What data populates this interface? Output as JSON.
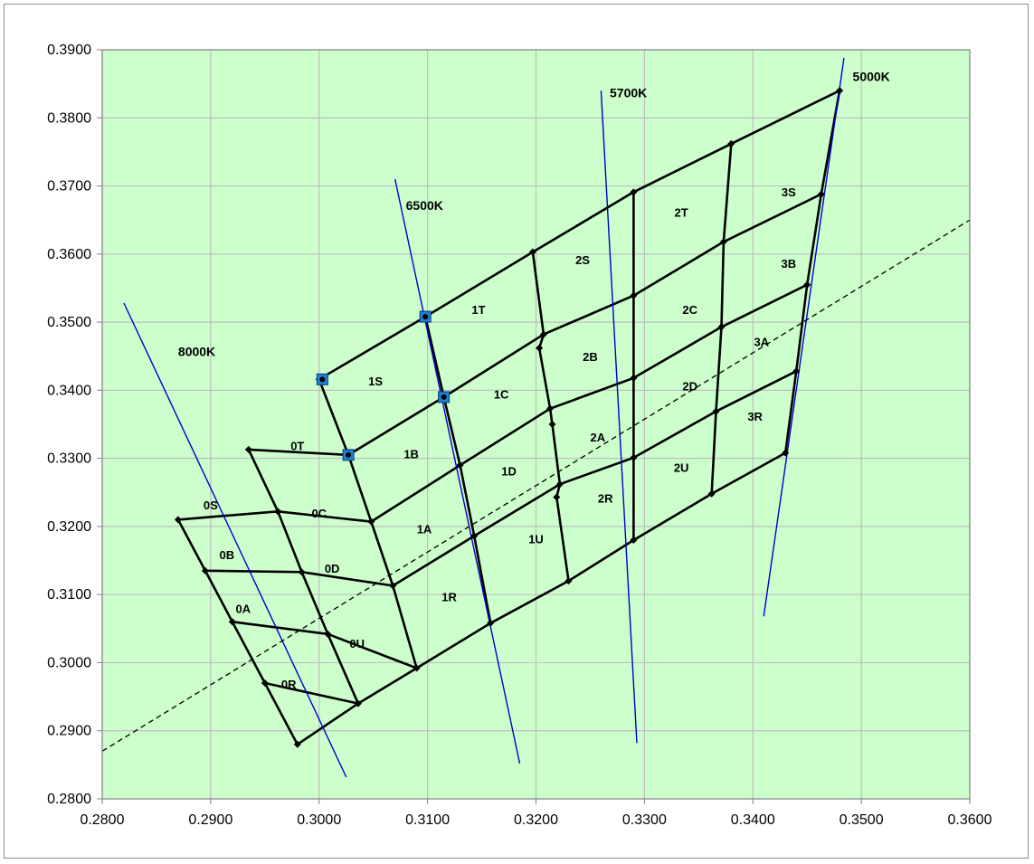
{
  "chart_data": {
    "type": "scatter",
    "title": "",
    "xlabel": "",
    "ylabel": "",
    "xlim": [
      0.28,
      0.36
    ],
    "ylim": [
      0.28,
      0.39
    ],
    "x_ticks": [
      "0.2800",
      "0.2900",
      "0.3000",
      "0.3100",
      "0.3200",
      "0.3300",
      "0.3400",
      "0.3500",
      "0.3600"
    ],
    "y_ticks": [
      "0.2800",
      "0.2900",
      "0.3000",
      "0.3100",
      "0.3200",
      "0.3300",
      "0.3400",
      "0.3500",
      "0.3600",
      "0.3700",
      "0.3800",
      "0.3900"
    ],
    "grid": true,
    "plot_background": "#ccffcc",
    "grid_color": "#bfbfbf",
    "bin_line_color": "#000000",
    "cct_line_color": "#0000cc",
    "bin_boundaries": [
      [
        [
          0.3,
          0.3416
        ],
        [
          0.3098,
          0.3508
        ],
        [
          0.3197,
          0.3603
        ],
        [
          0.329,
          0.3691
        ],
        [
          0.338,
          0.3762
        ],
        [
          0.348,
          0.384
        ]
      ],
      [
        [
          0.2935,
          0.3313
        ],
        [
          0.3027,
          0.3305
        ],
        [
          0.3115,
          0.339
        ],
        [
          0.3207,
          0.3482
        ],
        [
          0.329,
          0.3539
        ],
        [
          0.3373,
          0.3618
        ],
        [
          0.3463,
          0.3688
        ]
      ],
      [
        [
          0.287,
          0.321
        ],
        [
          0.2962,
          0.3222
        ],
        [
          0.3048,
          0.3207
        ],
        [
          0.313,
          0.329
        ],
        [
          0.3213,
          0.3373
        ],
        [
          0.329,
          0.3418
        ],
        [
          0.3371,
          0.3493
        ],
        [
          0.345,
          0.3555
        ]
      ],
      [
        [
          0.2895,
          0.3135
        ],
        [
          0.2984,
          0.3133
        ],
        [
          0.3068,
          0.3113
        ],
        [
          0.3143,
          0.3186
        ],
        [
          0.3222,
          0.3262
        ],
        [
          0.329,
          0.3301
        ],
        [
          0.3366,
          0.3369
        ],
        [
          0.344,
          0.3428
        ]
      ],
      [
        [
          0.292,
          0.306
        ],
        [
          0.3008,
          0.3042
        ],
        [
          0.309,
          0.2992
        ],
        [
          0.3158,
          0.3058
        ],
        [
          0.323,
          0.312
        ],
        [
          0.329,
          0.318
        ],
        [
          0.3362,
          0.3248
        ],
        [
          0.343,
          0.3308
        ]
      ],
      [
        [
          0.295,
          0.297
        ],
        [
          0.3036,
          0.294
        ]
      ],
      [
        [
          0.298,
          0.288
        ],
        [
          0.3036,
          0.294
        ],
        [
          0.309,
          0.2992
        ]
      ],
      [
        [
          0.2935,
          0.3313
        ],
        [
          0.2962,
          0.3222
        ],
        [
          0.2984,
          0.3133
        ],
        [
          0.3008,
          0.3042
        ],
        [
          0.3036,
          0.294
        ]
      ],
      [
        [
          0.287,
          0.321
        ],
        [
          0.2895,
          0.3135
        ],
        [
          0.292,
          0.306
        ],
        [
          0.295,
          0.297
        ],
        [
          0.298,
          0.288
        ]
      ],
      [
        [
          0.3,
          0.3416
        ],
        [
          0.3027,
          0.3305
        ],
        [
          0.3048,
          0.3207
        ],
        [
          0.3068,
          0.3113
        ],
        [
          0.309,
          0.2992
        ]
      ],
      [
        [
          0.3098,
          0.3508
        ],
        [
          0.3115,
          0.339
        ],
        [
          0.313,
          0.329
        ],
        [
          0.3143,
          0.3186
        ],
        [
          0.3158,
          0.3058
        ]
      ],
      [
        [
          0.3197,
          0.3603
        ],
        [
          0.3207,
          0.3482
        ],
        [
          0.3203,
          0.3462
        ],
        [
          0.3213,
          0.3373
        ],
        [
          0.3215,
          0.335
        ],
        [
          0.3222,
          0.3262
        ],
        [
          0.3219,
          0.3243
        ],
        [
          0.323,
          0.312
        ]
      ],
      [
        [
          0.329,
          0.3691
        ],
        [
          0.329,
          0.3539
        ],
        [
          0.329,
          0.3418
        ],
        [
          0.329,
          0.3301
        ],
        [
          0.329,
          0.318
        ]
      ],
      [
        [
          0.338,
          0.3762
        ],
        [
          0.3373,
          0.3618
        ],
        [
          0.3371,
          0.3493
        ],
        [
          0.3366,
          0.3369
        ],
        [
          0.3362,
          0.3248
        ]
      ],
      [
        [
          0.348,
          0.384
        ],
        [
          0.3463,
          0.3688
        ],
        [
          0.345,
          0.3555
        ],
        [
          0.344,
          0.3428
        ],
        [
          0.343,
          0.3308
        ]
      ]
    ],
    "cct_lines": [
      {
        "label": "8000K",
        "x": [
          0.282,
          0.3025
        ],
        "y": [
          0.3528,
          0.2832
        ],
        "label_xy": [
          0.287,
          0.345
        ]
      },
      {
        "label": "6500K",
        "x": [
          0.307,
          0.3185
        ],
        "y": [
          0.371,
          0.2852
        ],
        "label_xy": [
          0.308,
          0.3665
        ]
      },
      {
        "label": "5700K",
        "x": [
          0.326,
          0.3293
        ],
        "y": [
          0.384,
          0.2882
        ],
        "label_xy": [
          0.3268,
          0.383
        ]
      },
      {
        "label": "5000K",
        "x": [
          0.3484,
          0.341
        ],
        "y": [
          0.3888,
          0.3068
        ],
        "label_xy": [
          0.3492,
          0.3854
        ]
      }
    ],
    "planckian_line": {
      "x": [
        0.28,
        0.36
      ],
      "y": [
        0.287,
        0.365
      ]
    },
    "bin_labels": [
      {
        "text": "0S",
        "x": 0.29,
        "y": 0.3225
      },
      {
        "text": "0T",
        "x": 0.298,
        "y": 0.3312
      },
      {
        "text": "0B",
        "x": 0.2915,
        "y": 0.3152
      },
      {
        "text": "0C",
        "x": 0.3,
        "y": 0.3213
      },
      {
        "text": "0A",
        "x": 0.293,
        "y": 0.3073
      },
      {
        "text": "0D",
        "x": 0.3012,
        "y": 0.3132
      },
      {
        "text": "0R",
        "x": 0.2972,
        "y": 0.2962
      },
      {
        "text": "0U",
        "x": 0.3035,
        "y": 0.3022
      },
      {
        "text": "1S",
        "x": 0.3052,
        "y": 0.3407
      },
      {
        "text": "1T",
        "x": 0.3147,
        "y": 0.3512
      },
      {
        "text": "1B",
        "x": 0.3085,
        "y": 0.33
      },
      {
        "text": "1C",
        "x": 0.3168,
        "y": 0.3388
      },
      {
        "text": "1A",
        "x": 0.3097,
        "y": 0.319
      },
      {
        "text": "1D",
        "x": 0.3175,
        "y": 0.3275
      },
      {
        "text": "1R",
        "x": 0.312,
        "y": 0.309
      },
      {
        "text": "1U",
        "x": 0.32,
        "y": 0.3175
      },
      {
        "text": "2S",
        "x": 0.3243,
        "y": 0.3585
      },
      {
        "text": "2T",
        "x": 0.3334,
        "y": 0.3655
      },
      {
        "text": "2B",
        "x": 0.325,
        "y": 0.3443
      },
      {
        "text": "2C",
        "x": 0.3342,
        "y": 0.3512
      },
      {
        "text": "2A",
        "x": 0.3257,
        "y": 0.3325
      },
      {
        "text": "2D",
        "x": 0.3342,
        "y": 0.34
      },
      {
        "text": "2R",
        "x": 0.3264,
        "y": 0.3235
      },
      {
        "text": "2U",
        "x": 0.3334,
        "y": 0.328
      },
      {
        "text": "3S",
        "x": 0.3433,
        "y": 0.3685
      },
      {
        "text": "3B",
        "x": 0.3433,
        "y": 0.358
      },
      {
        "text": "3A",
        "x": 0.3408,
        "y": 0.3465
      },
      {
        "text": "3R",
        "x": 0.3402,
        "y": 0.3355
      }
    ],
    "highlight_points": [
      {
        "x": 0.3003,
        "y": 0.3416
      },
      {
        "x": 0.3098,
        "y": 0.3508
      },
      {
        "x": 0.3115,
        "y": 0.339
      },
      {
        "x": 0.3027,
        "y": 0.3305
      }
    ]
  }
}
